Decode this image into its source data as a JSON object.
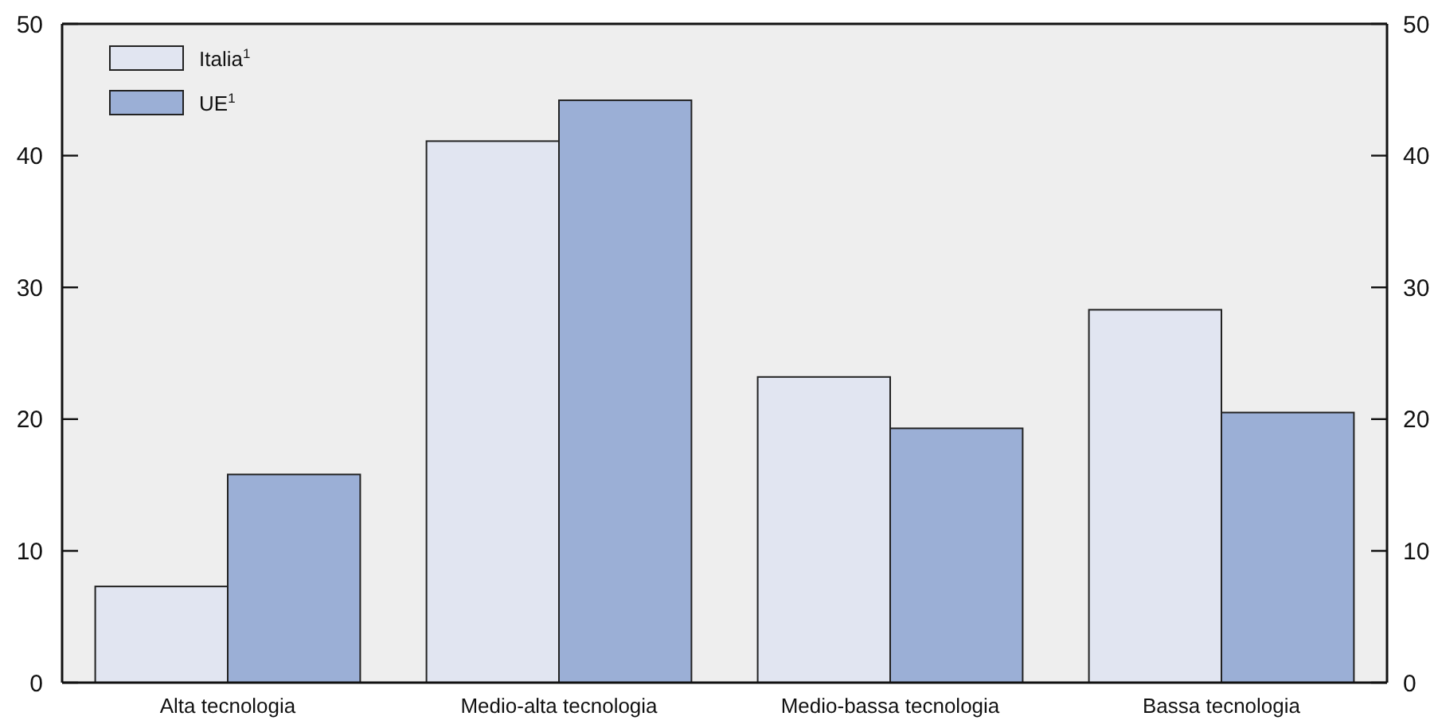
{
  "chart_data": {
    "type": "bar",
    "categories": [
      "Alta tecnologia",
      "Medio-alta tecnologia",
      "Medio-bassa tecnologia",
      "Bassa tecnologia"
    ],
    "series": [
      {
        "name": "Italia$^{1}$",
        "color": "#e1e5f1",
        "values": [
          7.3,
          41.1,
          23.2,
          28.3
        ]
      },
      {
        "name": "UE$^{1}$",
        "color": "#9bafd6",
        "values": [
          15.8,
          44.2,
          19.3,
          20.5
        ]
      }
    ],
    "ylim": [
      0,
      50
    ],
    "yticks": [
      0,
      10,
      20,
      30,
      40,
      50
    ],
    "y2lim": [
      0,
      50
    ],
    "y2ticks": [
      0,
      10,
      20,
      30,
      40,
      50
    ],
    "legend": "top left",
    "grid": false
  }
}
